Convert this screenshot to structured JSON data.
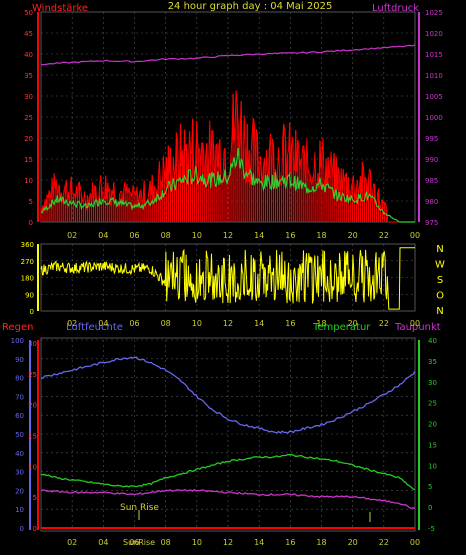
{
  "title": "24 hour graph day : 04 Mai 2025",
  "panel1": {
    "left_label": "Windstärke",
    "right_label": "Luftdruck",
    "left_ticks": [
      "0",
      "5",
      "10",
      "15",
      "20",
      "25",
      "30",
      "35",
      "40",
      "45",
      "50"
    ],
    "right_ticks": [
      "975",
      "980",
      "985",
      "990",
      "995",
      "1000",
      "1005",
      "1010",
      "1015",
      "1020",
      "1025"
    ],
    "x_ticks": [
      "02",
      "04",
      "06",
      "08",
      "10",
      "12",
      "14",
      "16",
      "18",
      "20",
      "22",
      "00"
    ]
  },
  "panel2": {
    "left_ticks": [
      "0",
      "90",
      "180",
      "270",
      "360"
    ],
    "right_labels": [
      "N",
      "W",
      "S",
      "O",
      "N"
    ],
    "x_ticks": [
      "02",
      "04",
      "06",
      "08",
      "10",
      "12",
      "14",
      "16",
      "18",
      "20",
      "22",
      "00"
    ]
  },
  "panel3": {
    "label_regen": "Regen",
    "label_luftfeuchte": "Luftfeuchte",
    "label_temperatur": "Temperatur",
    "label_taupunkt": "Taupunkt",
    "humidity_ticks": [
      "0",
      "10",
      "20",
      "30",
      "40",
      "50",
      "60",
      "70",
      "80",
      "90",
      "100"
    ],
    "rain_ticks": [
      "0",
      "5",
      "10",
      "15",
      "20",
      "25",
      "30"
    ],
    "temp_ticks": [
      "-5",
      "0",
      "5",
      "10",
      "15",
      "20",
      "25",
      "30",
      "35",
      "40"
    ],
    "x_ticks": [
      "02",
      "04",
      "06",
      "08",
      "10",
      "12",
      "14",
      "16",
      "18",
      "20",
      "22",
      "00"
    ],
    "sunrise_label": "Sun Rise",
    "bottom_sunrise_label": "SunRise"
  },
  "colors": {
    "background": "#000000",
    "wind_gust": "#ff0000",
    "wind_avg": "#33cc33",
    "pressure": "#cc33cc",
    "wind_dir": "#ffff00",
    "humidity": "#6666ee",
    "temperature": "#22cc22",
    "dewpoint": "#cc33cc",
    "rain": "#ff0000",
    "grid": "#666666"
  },
  "chart_data": [
    {
      "type": "line",
      "title": "24 hour graph day : 04 Mai 2025",
      "x_unit": "hour",
      "xlim": [
        0,
        24
      ],
      "series": [
        {
          "name": "Windstärke",
          "axis": "left",
          "x": [
            0,
            1,
            2,
            3,
            4,
            5,
            6,
            7,
            8,
            9,
            10,
            11,
            12,
            12.6,
            13,
            14,
            15,
            16,
            17,
            18,
            19,
            20,
            21,
            22,
            23,
            24
          ],
          "values": [
            5,
            12,
            10,
            8,
            12,
            10,
            8,
            10,
            17,
            22,
            25,
            22,
            24,
            35,
            28,
            20,
            22,
            22,
            18,
            20,
            14,
            12,
            14,
            5,
            0,
            0
          ]
        },
        {
          "name": "Luftdruck",
          "axis": "right",
          "x": [
            0,
            2,
            4,
            6,
            8,
            10,
            12,
            14,
            16,
            18,
            20,
            22,
            24
          ],
          "values": [
            1012.5,
            1013,
            1013.4,
            1013.2,
            1013.8,
            1014,
            1014.6,
            1015,
            1015.2,
            1015.5,
            1016,
            1016.5,
            1017
          ]
        }
      ],
      "ylim_left": [
        0,
        50
      ],
      "ylim_right": [
        975,
        1025
      ]
    },
    {
      "type": "line",
      "x_unit": "hour",
      "xlim": [
        0,
        24
      ],
      "series": [
        {
          "x": [
            0,
            1,
            2,
            3,
            4,
            5,
            6,
            7,
            8,
            9,
            10,
            11,
            12,
            13,
            14,
            15,
            16,
            17,
            18,
            19,
            20,
            21,
            22,
            23,
            24
          ],
          "values": [
            220,
            240,
            230,
            235,
            240,
            230,
            225,
            230,
            150,
            180,
            220,
            200,
            210,
            150,
            230,
            180,
            220,
            200,
            180,
            160,
            190,
            150,
            10,
            340,
            340
          ]
        }
      ],
      "ylim": [
        0,
        360
      ]
    },
    {
      "type": "line",
      "x_unit": "hour",
      "xlim": [
        0,
        24
      ],
      "series": [
        {
          "name": "Luftfeuchte",
          "axis": "humidity",
          "x": [
            0,
            1,
            2,
            3,
            4,
            5,
            6,
            7,
            8,
            9,
            10,
            11,
            12,
            13,
            14,
            15,
            16,
            17,
            18,
            19,
            20,
            21,
            22,
            23,
            24
          ],
          "values": [
            80,
            82,
            84,
            86,
            88,
            90,
            91,
            88,
            84,
            78,
            70,
            63,
            58,
            55,
            53,
            51,
            51,
            53,
            55,
            58,
            62,
            66,
            71,
            76,
            83
          ]
        },
        {
          "name": "Temperatur",
          "axis": "temperature",
          "x": [
            0,
            1,
            2,
            3,
            4,
            5,
            6,
            7,
            8,
            9,
            10,
            11,
            12,
            13,
            14,
            15,
            16,
            17,
            18,
            19,
            20,
            21,
            22,
            23,
            24
          ],
          "values": [
            8,
            7,
            6.5,
            6,
            5.5,
            5,
            5,
            5.5,
            7,
            8,
            9,
            10,
            11,
            11.5,
            12,
            12,
            12.5,
            12,
            11.5,
            11,
            10,
            9,
            8,
            7,
            4
          ]
        },
        {
          "name": "Taupunkt",
          "axis": "temperature",
          "x": [
            0,
            2,
            4,
            6,
            8,
            10,
            12,
            14,
            16,
            18,
            20,
            22,
            23,
            24
          ],
          "values": [
            4,
            3.5,
            3.5,
            3,
            4,
            4,
            3.5,
            3,
            3,
            2.5,
            2.5,
            1.5,
            1,
            -0.5
          ]
        },
        {
          "name": "Regen",
          "axis": "rain",
          "x": [
            0,
            24
          ],
          "values": [
            0,
            0
          ]
        }
      ],
      "ylim_humidity": [
        0,
        100
      ],
      "ylim_rain": [
        0,
        30
      ],
      "ylim_temperature": [
        -5,
        40
      ]
    }
  ]
}
